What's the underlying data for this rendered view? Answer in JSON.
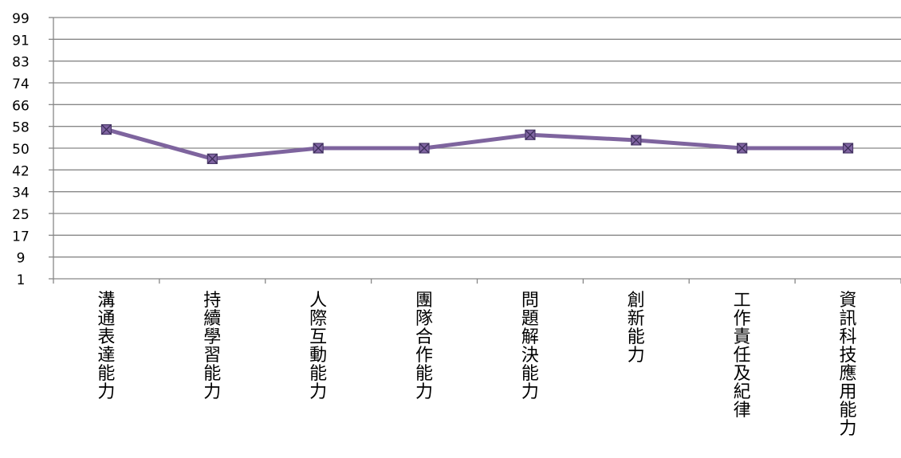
{
  "chart_data": {
    "type": "line",
    "categories": [
      "溝通表達能力",
      "持續學習能力",
      "人際互動能力",
      "團隊合作能力",
      "問題解決能力",
      "創新能力",
      "工作責任及紀律",
      "資訊科技應用能力"
    ],
    "series": [
      {
        "values": [
          57,
          46,
          50,
          50,
          55,
          53,
          50,
          50
        ],
        "color": "#7e649e",
        "marker": "square-x"
      }
    ],
    "yticks": [
      "99",
      "91",
      "83",
      "74",
      "66",
      "58",
      "50",
      "42",
      "34",
      "25",
      "17",
      "9",
      "1"
    ],
    "ylim": [
      1,
      99
    ],
    "grid": true,
    "legend": "none"
  }
}
